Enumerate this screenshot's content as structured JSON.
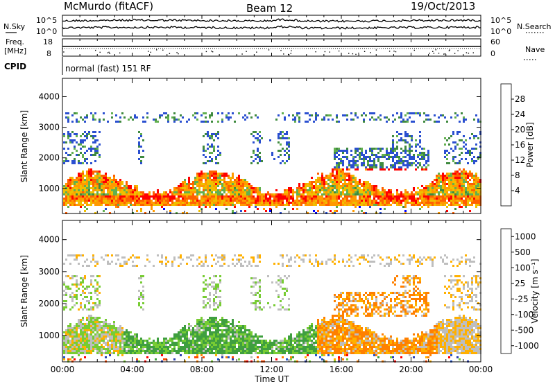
{
  "header": {
    "station": "McMurdo (fitACF)",
    "beam": "Beam 12",
    "date": "19/Oct/2013"
  },
  "noise_panel": {
    "left_label": "N.Sky",
    "right_label": "N.Search",
    "left_ticks": [
      "10^5",
      "10^0"
    ],
    "right_ticks": [
      "10^5",
      "10^0"
    ]
  },
  "freq_panel": {
    "left_label_line1": "Freq.",
    "left_label_line2": "[MHz]",
    "right_label": "Nave",
    "left_ticks": [
      "18",
      "8"
    ],
    "right_ticks": [
      "60",
      "0"
    ]
  },
  "cpid": {
    "label": "CPID",
    "value": "normal (fast) 151 RF"
  },
  "colors": {
    "power": [
      "#0000ff",
      "#2a4fd0",
      "#3f8a3f",
      "#62b04f",
      "#f0c000",
      "#ff9a00",
      "#ff6000",
      "#ff0000"
    ],
    "velocity": [
      "#ff0000",
      "#ff4a00",
      "#ff8000",
      "#ffb000",
      "#bebebe",
      "#77cc33",
      "#3f9f3f",
      "#2255cc",
      "#2a3fb0"
    ]
  },
  "chart_data": [
    {
      "type": "heatmap",
      "panel": "power",
      "ylabel": "Slant Range [km]",
      "ylim": [
        180,
        4600
      ],
      "yticks": [
        1000,
        2000,
        3000,
        4000
      ],
      "xlim": [
        0,
        24
      ],
      "xticks": [
        "00:00",
        "04:00",
        "08:00",
        "12:00",
        "16:00",
        "20:00",
        "00:00"
      ],
      "colorbar_label": "Power [dB]",
      "colorbar_ticks": [
        "28",
        "24",
        "20",
        "16",
        "12",
        "8",
        "4"
      ],
      "colorbar_range": [
        0,
        30
      ]
    },
    {
      "type": "heatmap",
      "panel": "velocity",
      "ylabel": "Slant Range [km]",
      "ylim": [
        180,
        4600
      ],
      "yticks": [
        1000,
        2000,
        3000,
        4000
      ],
      "xlim": [
        0,
        24
      ],
      "xticks": [
        "00:00",
        "04:00",
        "08:00",
        "12:00",
        "16:00",
        "20:00",
        "00:00"
      ],
      "xlabel": "Time UT",
      "colorbar_label": "Velocity [m s⁻¹]",
      "colorbar_ticks": [
        "1000",
        "500",
        "100",
        "25",
        "-25",
        "-100",
        "-500",
        "-1000"
      ]
    }
  ]
}
